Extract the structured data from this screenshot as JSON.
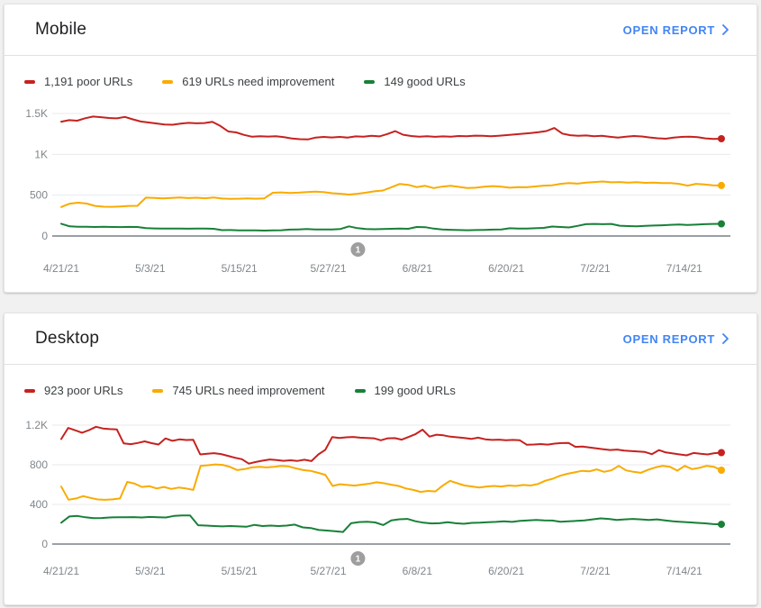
{
  "link_color": "#4285f4",
  "cards": [
    {
      "title": "Mobile",
      "open_report_label": "OPEN REPORT",
      "legend": [
        {
          "name": "poor",
          "label": "1,191 poor URLs",
          "color": "#c5221f"
        },
        {
          "name": "needs-improvement",
          "label": "619 URLs need improvement",
          "color": "#f9ab00"
        },
        {
          "name": "good",
          "label": "149 good URLs",
          "color": "#188038"
        }
      ]
    },
    {
      "title": "Desktop",
      "open_report_label": "OPEN REPORT",
      "legend": [
        {
          "name": "poor",
          "label": "923 poor URLs",
          "color": "#c5221f"
        },
        {
          "name": "needs-improvement",
          "label": "745 URLs need improvement",
          "color": "#f9ab00"
        },
        {
          "name": "good",
          "label": "199 good URLs",
          "color": "#188038"
        }
      ]
    }
  ],
  "chart_data": [
    {
      "type": "line",
      "title": "Mobile core web vitals URLs over time",
      "x_tick_labels": [
        "4/21/21",
        "5/3/21",
        "5/15/21",
        "5/27/21",
        "6/8/21",
        "6/20/21",
        "7/2/21",
        "7/14/21"
      ],
      "x_tick_days": [
        0,
        12,
        24,
        36,
        48,
        60,
        72,
        84
      ],
      "x_total_days": 89,
      "ylim": [
        0,
        1500
      ],
      "y_ticks": [
        {
          "value": 0,
          "label": "0"
        },
        {
          "value": 500,
          "label": "500"
        },
        {
          "value": 1000,
          "label": "1K"
        },
        {
          "value": 1500,
          "label": "1.5K"
        }
      ],
      "grid": "horizontal",
      "legend_position": "top",
      "axis_text_color": "#80868b",
      "grid_color": "#e8eaed",
      "baseline_color": "#9aa0a6",
      "annotation": {
        "label": "1",
        "day": 40,
        "color": "#9e9e9e"
      },
      "series": [
        {
          "name": "poor URLs",
          "color": "#c5221f",
          "values": [
            1400,
            1418,
            1412,
            1442,
            1462,
            1455,
            1445,
            1440,
            1458,
            1428,
            1402,
            1390,
            1378,
            1365,
            1362,
            1375,
            1385,
            1380,
            1383,
            1398,
            1348,
            1280,
            1268,
            1238,
            1215,
            1222,
            1218,
            1222,
            1210,
            1195,
            1186,
            1182,
            1205,
            1213,
            1207,
            1213,
            1205,
            1220,
            1216,
            1226,
            1220,
            1248,
            1284,
            1240,
            1224,
            1217,
            1221,
            1214,
            1220,
            1217,
            1224,
            1221,
            1229,
            1226,
            1222,
            1228,
            1235,
            1243,
            1252,
            1261,
            1272,
            1285,
            1322,
            1254,
            1234,
            1227,
            1231,
            1221,
            1227,
            1214,
            1204,
            1217,
            1224,
            1219,
            1207,
            1197,
            1191,
            1204,
            1213,
            1217,
            1211,
            1196,
            1189,
            1191
          ]
        },
        {
          "name": "URLs need improvement",
          "color": "#f9ab00",
          "values": [
            355,
            396,
            408,
            397,
            368,
            358,
            357,
            362,
            368,
            370,
            470,
            467,
            461,
            467,
            471,
            464,
            469,
            462,
            471,
            459,
            454,
            457,
            461,
            457,
            461,
            529,
            534,
            527,
            531,
            537,
            544,
            537,
            524,
            517,
            507,
            517,
            531,
            547,
            557,
            597,
            638,
            627,
            599,
            614,
            587,
            604,
            614,
            601,
            587,
            591,
            604,
            611,
            604,
            591,
            599,
            597,
            607,
            617,
            621,
            639,
            649,
            641,
            654,
            661,
            667,
            657,
            661,
            654,
            659,
            651,
            654,
            647,
            649,
            639,
            617,
            639,
            631,
            621,
            619
          ]
        },
        {
          "name": "good URLs",
          "color": "#188038",
          "values": [
            150,
            118,
            112,
            113,
            110,
            112,
            110,
            109,
            111,
            110,
            96,
            93,
            91,
            92,
            90,
            89,
            91,
            92,
            88,
            72,
            73,
            70,
            69,
            70,
            66,
            68,
            71,
            78,
            81,
            85,
            81,
            79,
            81,
            86,
            118,
            96,
            86,
            83,
            85,
            88,
            90,
            88,
            110,
            108,
            90,
            79,
            76,
            73,
            71,
            73,
            75,
            78,
            80,
            95,
            92,
            90,
            95,
            99,
            116,
            110,
            105,
            124,
            145,
            148,
            144,
            148,
            126,
            121,
            119,
            125,
            128,
            131,
            137,
            141,
            135,
            139,
            144,
            148,
            149
          ]
        }
      ]
    },
    {
      "type": "line",
      "title": "Desktop core web vitals URLs over time",
      "x_tick_labels": [
        "4/21/21",
        "5/3/21",
        "5/15/21",
        "5/27/21",
        "6/8/21",
        "6/20/21",
        "7/2/21",
        "7/14/21"
      ],
      "x_tick_days": [
        0,
        12,
        24,
        36,
        48,
        60,
        72,
        84
      ],
      "x_total_days": 89,
      "ylim": [
        0,
        1200
      ],
      "y_ticks": [
        {
          "value": 0,
          "label": "0"
        },
        {
          "value": 400,
          "label": "400"
        },
        {
          "value": 800,
          "label": "800"
        },
        {
          "value": 1200,
          "label": "1.2K"
        }
      ],
      "grid": "horizontal",
      "legend_position": "top",
      "axis_text_color": "#80868b",
      "grid_color": "#e8eaed",
      "baseline_color": "#9aa0a6",
      "annotation": {
        "label": "1",
        "day": 40,
        "color": "#9e9e9e"
      },
      "series": [
        {
          "name": "poor URLs",
          "color": "#c5221f",
          "values": [
            1060,
            1172,
            1148,
            1124,
            1150,
            1184,
            1166,
            1160,
            1157,
            1015,
            1008,
            1020,
            1036,
            1018,
            1005,
            1066,
            1042,
            1056,
            1050,
            1052,
            905,
            912,
            917,
            908,
            890,
            871,
            856,
            812,
            828,
            842,
            854,
            847,
            840,
            845,
            839,
            851,
            837,
            905,
            951,
            1080,
            1070,
            1077,
            1081,
            1074,
            1071,
            1067,
            1047,
            1067,
            1069,
            1054,
            1081,
            1110,
            1155,
            1085,
            1104,
            1097,
            1084,
            1077,
            1071,
            1061,
            1074,
            1057,
            1051,
            1054,
            1047,
            1051,
            1047,
            1002,
            1005,
            1009,
            1004,
            1014,
            1019,
            1021,
            981,
            985,
            975,
            965,
            957,
            949,
            954,
            944,
            939,
            934,
            929,
            907,
            948,
            925,
            915,
            905,
            895,
            919,
            911,
            905,
            917,
            923
          ]
        },
        {
          "name": "URLs need improvement",
          "color": "#f9ab00",
          "values": [
            580,
            447,
            460,
            484,
            465,
            450,
            446,
            451,
            460,
            627,
            610,
            576,
            585,
            561,
            576,
            556,
            570,
            561,
            546,
            788,
            795,
            804,
            799,
            779,
            746,
            756,
            774,
            779,
            774,
            779,
            789,
            784,
            764,
            746,
            739,
            719,
            699,
            586,
            604,
            596,
            590,
            600,
            609,
            624,
            614,
            599,
            586,
            561,
            546,
            526,
            536,
            531,
            589,
            638,
            614,
            591,
            581,
            571,
            581,
            586,
            581,
            591,
            586,
            596,
            591,
            606,
            639,
            659,
            689,
            709,
            724,
            739,
            734,
            754,
            729,
            744,
            789,
            744,
            729,
            719,
            749,
            774,
            789,
            779,
            741,
            789,
            756,
            769,
            789,
            779,
            745
          ]
        },
        {
          "name": "good URLs",
          "color": "#188038",
          "values": [
            215,
            278,
            284,
            270,
            261,
            263,
            268,
            271,
            270,
            272,
            268,
            274,
            270,
            268,
            284,
            288,
            289,
            190,
            186,
            182,
            178,
            182,
            178,
            175,
            194,
            182,
            186,
            182,
            186,
            196,
            168,
            162,
            142,
            136,
            130,
            122,
            210,
            222,
            225,
            218,
            192,
            238,
            250,
            254,
            230,
            215,
            208,
            210,
            221,
            210,
            205,
            214,
            215,
            220,
            224,
            229,
            224,
            234,
            239,
            244,
            239,
            237,
            225,
            229,
            234,
            239,
            249,
            259,
            254,
            244,
            249,
            254,
            249,
            244,
            249,
            239,
            229,
            224,
            219,
            214,
            209,
            201,
            199
          ]
        }
      ]
    }
  ]
}
